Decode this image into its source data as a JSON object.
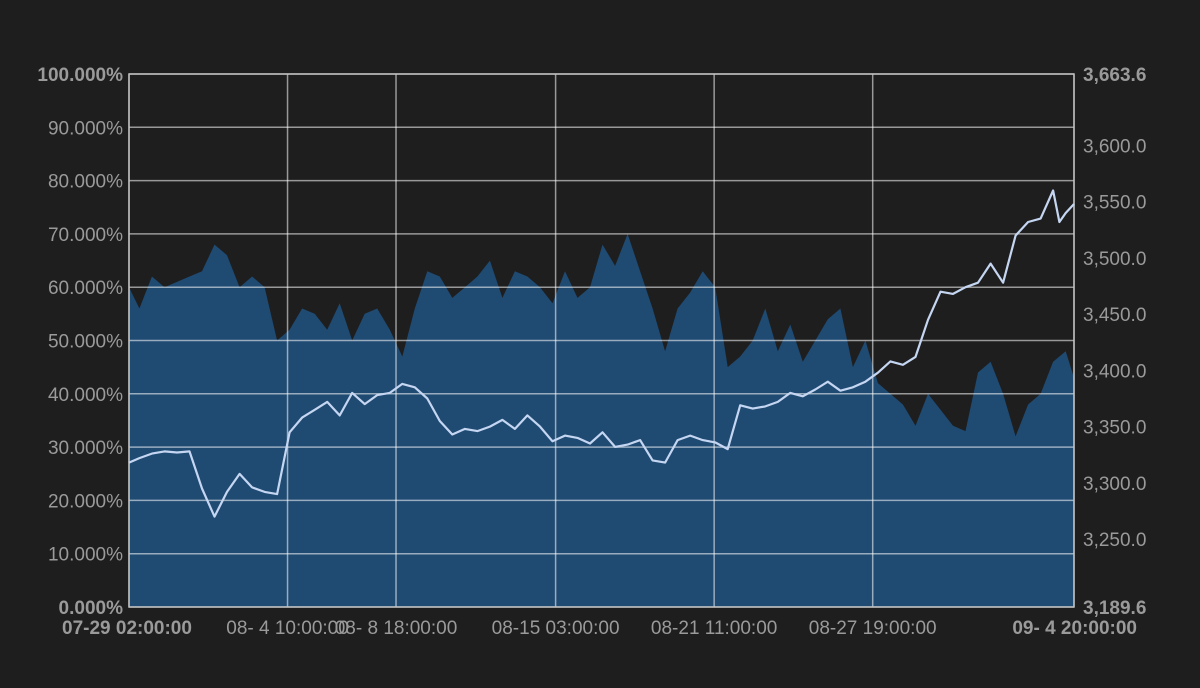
{
  "chart_data": {
    "type": "area",
    "background": "#1e1e1e",
    "area_color": "#1f4a72",
    "line_color": "#c5d6f2",
    "grid": true,
    "grid_color": "#ffffff",
    "left_axis": {
      "ylim": [
        0,
        100
      ],
      "ticks": [
        {
          "value": 0,
          "label": "0.000%",
          "bold": true
        },
        {
          "value": 10,
          "label": "10.000%",
          "bold": false
        },
        {
          "value": 20,
          "label": "20.000%",
          "bold": false
        },
        {
          "value": 30,
          "label": "30.000%",
          "bold": false
        },
        {
          "value": 40,
          "label": "40.000%",
          "bold": false
        },
        {
          "value": 50,
          "label": "50.000%",
          "bold": false
        },
        {
          "value": 60,
          "label": "60.000%",
          "bold": false
        },
        {
          "value": 70,
          "label": "70.000%",
          "bold": false
        },
        {
          "value": 80,
          "label": "80.000%",
          "bold": false
        },
        {
          "value": 90,
          "label": "90.000%",
          "bold": false
        },
        {
          "value": 100,
          "label": "100.000%",
          "bold": true
        }
      ]
    },
    "right_axis": {
      "ylim": [
        3189.6,
        3663.6
      ],
      "ticks": [
        {
          "value": 3189.6,
          "label": "3,189.6",
          "bold": true
        },
        {
          "value": 3250,
          "label": "3,250.0",
          "bold": false
        },
        {
          "value": 3300,
          "label": "3,300.0",
          "bold": false
        },
        {
          "value": 3350,
          "label": "3,350.0",
          "bold": false
        },
        {
          "value": 3400,
          "label": "3,400.0",
          "bold": false
        },
        {
          "value": 3450,
          "label": "3,450.0",
          "bold": false
        },
        {
          "value": 3500,
          "label": "3,500.0",
          "bold": false
        },
        {
          "value": 3550,
          "label": "3,550.0",
          "bold": false
        },
        {
          "value": 3600,
          "label": "3,600.0",
          "bold": false
        },
        {
          "value": 3663.6,
          "label": "3,663.6",
          "bold": true
        }
      ]
    },
    "x_axis": {
      "xlim": [
        "2020-07-29 02:00",
        "2020-09-04 20:00"
      ],
      "ticks": [
        {
          "x": "2020-07-29 02:00",
          "label": "07-29 02:00:00",
          "bold": true,
          "align": "start"
        },
        {
          "x": "2020-08-04 10:00",
          "label": "08- 4 10:00:00",
          "bold": false,
          "align": "middle"
        },
        {
          "x": "2020-08-08 18:00",
          "label": "08- 8 18:00:00",
          "bold": false,
          "align": "middle"
        },
        {
          "x": "2020-08-15 03:00",
          "label": "08-15 03:00:00",
          "bold": false,
          "align": "middle"
        },
        {
          "x": "2020-08-21 11:00",
          "label": "08-21 11:00:00",
          "bold": false,
          "align": "middle"
        },
        {
          "x": "2020-08-27 19:00",
          "label": "08-27 19:00:00",
          "bold": false,
          "align": "middle"
        },
        {
          "x": "2020-09-04 20:00",
          "label": "09- 4 20:00:00",
          "bold": true,
          "align": "end"
        }
      ]
    },
    "series": [
      {
        "axis": "left",
        "kind": "area",
        "points": [
          [
            "2020-07-29 02:00",
            60
          ],
          [
            "2020-07-29 12:00",
            56
          ],
          [
            "2020-07-30 00:00",
            62
          ],
          [
            "2020-07-30 12:00",
            60
          ],
          [
            "2020-07-31 00:00",
            61
          ],
          [
            "2020-07-31 12:00",
            62
          ],
          [
            "2020-08-01 00:00",
            63
          ],
          [
            "2020-08-01 12:00",
            68
          ],
          [
            "2020-08-02 00:00",
            66
          ],
          [
            "2020-08-02 12:00",
            60
          ],
          [
            "2020-08-03 00:00",
            62
          ],
          [
            "2020-08-03 12:00",
            60
          ],
          [
            "2020-08-04 00:00",
            50
          ],
          [
            "2020-08-04 12:00",
            52
          ],
          [
            "2020-08-05 00:00",
            56
          ],
          [
            "2020-08-05 12:00",
            55
          ],
          [
            "2020-08-06 00:00",
            52
          ],
          [
            "2020-08-06 12:00",
            57
          ],
          [
            "2020-08-07 00:00",
            50
          ],
          [
            "2020-08-07 12:00",
            55
          ],
          [
            "2020-08-08 00:00",
            56
          ],
          [
            "2020-08-08 12:00",
            52
          ],
          [
            "2020-08-09 00:00",
            47
          ],
          [
            "2020-08-09 12:00",
            56
          ],
          [
            "2020-08-10 00:00",
            63
          ],
          [
            "2020-08-10 12:00",
            62
          ],
          [
            "2020-08-11 00:00",
            58
          ],
          [
            "2020-08-11 12:00",
            60
          ],
          [
            "2020-08-12 00:00",
            62
          ],
          [
            "2020-08-12 12:00",
            65
          ],
          [
            "2020-08-13 00:00",
            58
          ],
          [
            "2020-08-13 12:00",
            63
          ],
          [
            "2020-08-14 00:00",
            62
          ],
          [
            "2020-08-14 12:00",
            60
          ],
          [
            "2020-08-15 00:00",
            57
          ],
          [
            "2020-08-15 12:00",
            63
          ],
          [
            "2020-08-16 00:00",
            58
          ],
          [
            "2020-08-16 12:00",
            60
          ],
          [
            "2020-08-17 00:00",
            68
          ],
          [
            "2020-08-17 12:00",
            64
          ],
          [
            "2020-08-18 00:00",
            70
          ],
          [
            "2020-08-18 12:00",
            63
          ],
          [
            "2020-08-19 00:00",
            56
          ],
          [
            "2020-08-19 12:00",
            48
          ],
          [
            "2020-08-20 00:00",
            56
          ],
          [
            "2020-08-20 12:00",
            59
          ],
          [
            "2020-08-21 00:00",
            63
          ],
          [
            "2020-08-21 12:00",
            60
          ],
          [
            "2020-08-22 00:00",
            45
          ],
          [
            "2020-08-22 12:00",
            47
          ],
          [
            "2020-08-23 00:00",
            50
          ],
          [
            "2020-08-23 12:00",
            56
          ],
          [
            "2020-08-24 00:00",
            48
          ],
          [
            "2020-08-24 12:00",
            53
          ],
          [
            "2020-08-25 00:00",
            46
          ],
          [
            "2020-08-25 12:00",
            50
          ],
          [
            "2020-08-26 00:00",
            54
          ],
          [
            "2020-08-26 12:00",
            56
          ],
          [
            "2020-08-27 00:00",
            45
          ],
          [
            "2020-08-27 12:00",
            50
          ],
          [
            "2020-08-28 00:00",
            42
          ],
          [
            "2020-08-28 12:00",
            40
          ],
          [
            "2020-08-29 00:00",
            38
          ],
          [
            "2020-08-29 12:00",
            34
          ],
          [
            "2020-08-30 00:00",
            40
          ],
          [
            "2020-08-30 12:00",
            37
          ],
          [
            "2020-08-31 00:00",
            34
          ],
          [
            "2020-08-31 12:00",
            33
          ],
          [
            "2020-09-01 00:00",
            44
          ],
          [
            "2020-09-01 12:00",
            46
          ],
          [
            "2020-09-02 00:00",
            40
          ],
          [
            "2020-09-02 12:00",
            32
          ],
          [
            "2020-09-03 00:00",
            38
          ],
          [
            "2020-09-03 12:00",
            40
          ],
          [
            "2020-09-04 00:00",
            46
          ],
          [
            "2020-09-04 12:00",
            48
          ],
          [
            "2020-09-04 20:00",
            43
          ]
        ]
      },
      {
        "axis": "right",
        "kind": "line",
        "points": [
          [
            "2020-07-29 02:00",
            3318
          ],
          [
            "2020-07-29 12:00",
            3322
          ],
          [
            "2020-07-30 00:00",
            3326
          ],
          [
            "2020-07-30 12:00",
            3328
          ],
          [
            "2020-07-31 00:00",
            3327
          ],
          [
            "2020-07-31 12:00",
            3328
          ],
          [
            "2020-08-01 00:00",
            3295
          ],
          [
            "2020-08-01 12:00",
            3270
          ],
          [
            "2020-08-02 00:00",
            3292
          ],
          [
            "2020-08-02 12:00",
            3308
          ],
          [
            "2020-08-03 00:00",
            3296
          ],
          [
            "2020-08-03 12:00",
            3292
          ],
          [
            "2020-08-04 00:00",
            3290
          ],
          [
            "2020-08-04 12:00",
            3345
          ],
          [
            "2020-08-05 00:00",
            3358
          ],
          [
            "2020-08-05 12:00",
            3365
          ],
          [
            "2020-08-06 00:00",
            3372
          ],
          [
            "2020-08-06 12:00",
            3360
          ],
          [
            "2020-08-07 00:00",
            3380
          ],
          [
            "2020-08-07 12:00",
            3370
          ],
          [
            "2020-08-08 00:00",
            3378
          ],
          [
            "2020-08-08 12:00",
            3380
          ],
          [
            "2020-08-09 00:00",
            3388
          ],
          [
            "2020-08-09 12:00",
            3385
          ],
          [
            "2020-08-10 00:00",
            3375
          ],
          [
            "2020-08-10 12:00",
            3355
          ],
          [
            "2020-08-11 00:00",
            3343
          ],
          [
            "2020-08-11 12:00",
            3348
          ],
          [
            "2020-08-12 00:00",
            3346
          ],
          [
            "2020-08-12 12:00",
            3350
          ],
          [
            "2020-08-13 00:00",
            3356
          ],
          [
            "2020-08-13 12:00",
            3348
          ],
          [
            "2020-08-14 00:00",
            3360
          ],
          [
            "2020-08-14 12:00",
            3350
          ],
          [
            "2020-08-15 00:00",
            3337
          ],
          [
            "2020-08-15 12:00",
            3342
          ],
          [
            "2020-08-16 00:00",
            3340
          ],
          [
            "2020-08-16 12:00",
            3335
          ],
          [
            "2020-08-17 00:00",
            3345
          ],
          [
            "2020-08-17 12:00",
            3332
          ],
          [
            "2020-08-18 00:00",
            3334
          ],
          [
            "2020-08-18 12:00",
            3338
          ],
          [
            "2020-08-19 00:00",
            3320
          ],
          [
            "2020-08-19 12:00",
            3318
          ],
          [
            "2020-08-20 00:00",
            3338
          ],
          [
            "2020-08-20 12:00",
            3342
          ],
          [
            "2020-08-21 00:00",
            3338
          ],
          [
            "2020-08-21 12:00",
            3336
          ],
          [
            "2020-08-22 00:00",
            3330
          ],
          [
            "2020-08-22 12:00",
            3369
          ],
          [
            "2020-08-23 00:00",
            3366
          ],
          [
            "2020-08-23 12:00",
            3368
          ],
          [
            "2020-08-24 00:00",
            3372
          ],
          [
            "2020-08-24 12:00",
            3380
          ],
          [
            "2020-08-25 00:00",
            3377
          ],
          [
            "2020-08-25 12:00",
            3383
          ],
          [
            "2020-08-26 00:00",
            3390
          ],
          [
            "2020-08-26 12:00",
            3382
          ],
          [
            "2020-08-27 00:00",
            3385
          ],
          [
            "2020-08-27 12:00",
            3390
          ],
          [
            "2020-08-28 00:00",
            3398
          ],
          [
            "2020-08-28 12:00",
            3408
          ],
          [
            "2020-08-29 00:00",
            3405
          ],
          [
            "2020-08-29 12:00",
            3412
          ],
          [
            "2020-08-30 00:00",
            3445
          ],
          [
            "2020-08-30 12:00",
            3470
          ],
          [
            "2020-08-31 00:00",
            3468
          ],
          [
            "2020-08-31 12:00",
            3474
          ],
          [
            "2020-09-01 00:00",
            3478
          ],
          [
            "2020-09-01 12:00",
            3495
          ],
          [
            "2020-09-02 00:00",
            3478
          ],
          [
            "2020-09-02 12:00",
            3520
          ],
          [
            "2020-09-03 00:00",
            3532
          ],
          [
            "2020-09-03 12:00",
            3535
          ],
          [
            "2020-09-04 00:00",
            3560
          ],
          [
            "2020-09-04 06:00",
            3532
          ],
          [
            "2020-09-04 12:00",
            3540
          ],
          [
            "2020-09-04 20:00",
            3548
          ]
        ]
      }
    ]
  }
}
